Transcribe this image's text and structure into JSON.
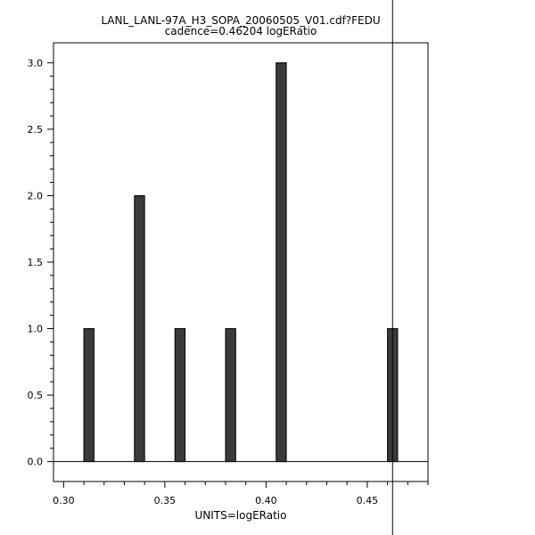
{
  "chart_data": {
    "type": "bar",
    "title": "LANL_LANL-97A_H3_SOPA_20060505_V01.cdf?FEDU",
    "subtitle": "cadence=0.46204 logERatio",
    "xlabel": "UNITS=logERatio",
    "ylabel": "",
    "xlim": [
      0.295,
      0.48
    ],
    "ylim": [
      -0.15,
      3.15
    ],
    "x_ticks": [
      "0.30",
      "0.35",
      "0.40",
      "0.45"
    ],
    "y_ticks": [
      "0.0",
      "0.5",
      "1.0",
      "1.5",
      "2.0",
      "2.5",
      "3.0"
    ],
    "bar_width": 0.005,
    "x": [
      0.3125,
      0.3375,
      0.3575,
      0.3825,
      0.4075,
      0.4625
    ],
    "values": [
      1,
      2,
      1,
      1,
      3,
      1
    ],
    "reference_line_x": 0.4625,
    "grid": false,
    "bar_color": "#3a3a3a"
  }
}
